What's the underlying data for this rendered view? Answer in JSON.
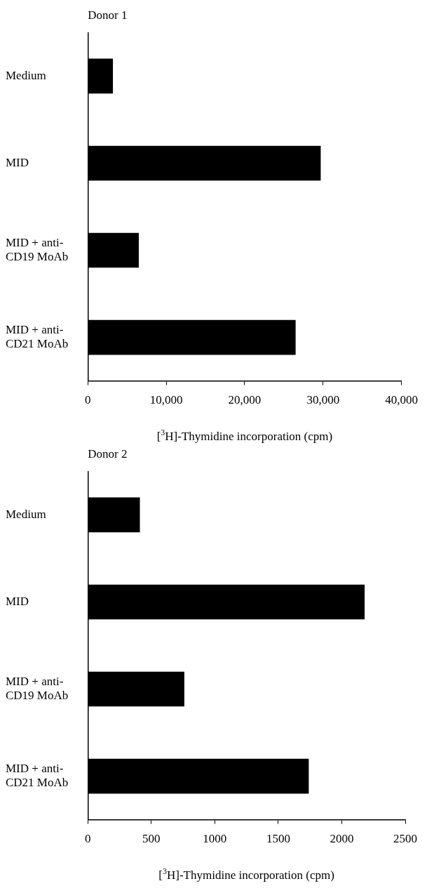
{
  "chart_data": [
    {
      "type": "bar",
      "orientation": "horizontal",
      "title": "Donor 1",
      "xlabel": "[$^{3}$H]-Thymidine incorporation (cpm)",
      "categories": [
        "Medium",
        "MID",
        "MID + anti-CD19 MoAb",
        "MID + anti-CD21 MoAb"
      ],
      "values": [
        3200,
        29700,
        6500,
        26500
      ],
      "color": "#000000",
      "xlim": [
        0,
        40000
      ],
      "xticks": [
        0,
        {
          "value": 10000,
          "label": "10,000"
        },
        {
          "value": 20000,
          "label": "20,000"
        },
        {
          "value": 30000,
          "label": "30,000"
        },
        {
          "value": 40000,
          "label": "40,000"
        }
      ]
    },
    {
      "type": "bar",
      "orientation": "horizontal",
      "title": "Donor 2",
      "xlabel": "[$^{3}$H]-Thymidine incorporation (cpm)",
      "categories": [
        "Medium",
        "MID",
        "MID + anti-CD19 MoAb",
        "MID + anti-CD21 MoAb"
      ],
      "values": [
        410,
        2180,
        760,
        1740
      ],
      "color": "#000000",
      "xlim": [
        0,
        2500
      ],
      "xticks": [
        0,
        500,
        1000,
        1500,
        2000,
        2500
      ]
    }
  ]
}
